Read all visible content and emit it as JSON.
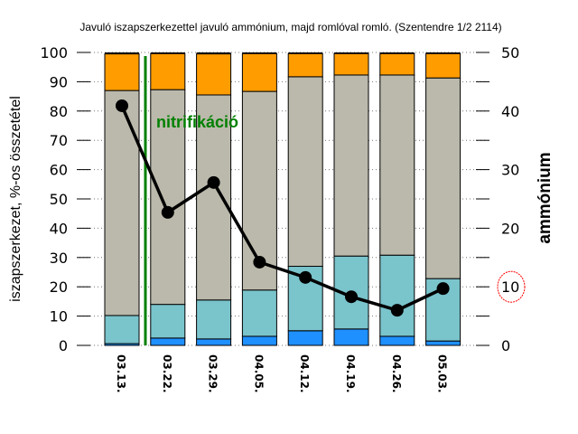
{
  "chart_data": {
    "type": "bar",
    "stacked": true,
    "title": "Javuló iszapszerkezettel javuló ammónium, majd romlóval romló. (Szentendre 1/2 2114)",
    "ylabel": "iszapszerkezet, %-os összetétel",
    "y2label": "ammónium",
    "ylim": [
      0,
      100
    ],
    "y2lim": [
      0,
      50
    ],
    "yticks": [
      0,
      10,
      20,
      30,
      40,
      50,
      60,
      70,
      80,
      90,
      100
    ],
    "y2ticks": [
      0,
      10,
      20,
      30,
      40,
      50
    ],
    "grid": true,
    "categories": [
      "03.13.",
      "03.22.",
      "03.29.",
      "04.05.",
      "04.12.",
      "04.19.",
      "04.26.",
      "05.03."
    ],
    "series": [
      {
        "color": "#1e90ff",
        "values": [
          0.6,
          2.5,
          2.2,
          3.1,
          5.0,
          5.6,
          3.1,
          1.5
        ]
      },
      {
        "color": "#7ac4cc",
        "values": [
          9.6,
          11.5,
          13.3,
          15.8,
          22.0,
          24.9,
          27.7,
          21.3
        ]
      },
      {
        "color": "#bbb9ab",
        "values": [
          76.8,
          73.3,
          70.0,
          67.8,
          64.7,
          61.8,
          61.5,
          68.5
        ]
      },
      {
        "color": "#ff9c00",
        "values": [
          12.5,
          12.3,
          14.0,
          12.9,
          7.9,
          7.3,
          7.3,
          8.3
        ]
      }
    ],
    "line": {
      "axis": "right",
      "color": "#000000",
      "values": [
        40.9,
        22.7,
        27.8,
        14.2,
        11.6,
        8.3,
        6.0,
        9.7
      ]
    },
    "annotation": {
      "text": "nitrifikáció",
      "color": "#008000",
      "between": [
        "03.13.",
        "03.22."
      ]
    },
    "highlight": {
      "axis": "right",
      "tick": 10,
      "color": "#ff0000"
    }
  }
}
